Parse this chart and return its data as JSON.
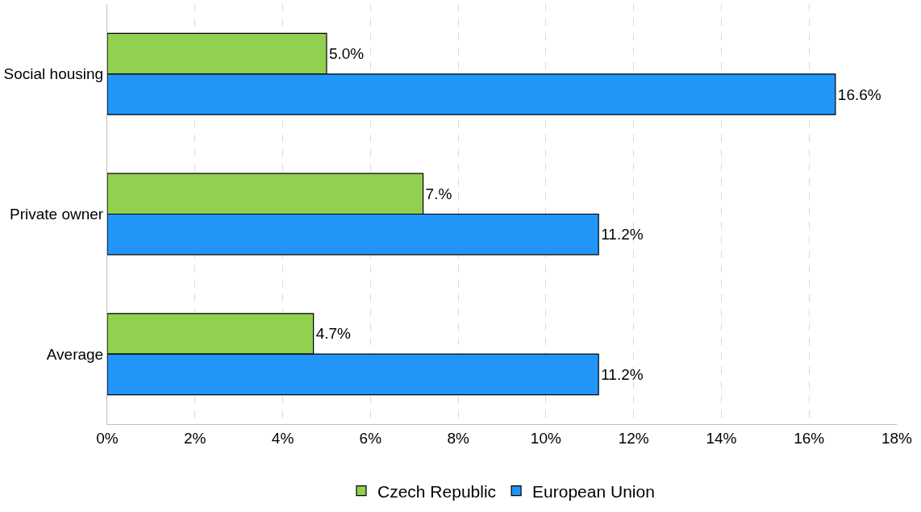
{
  "chart_data": {
    "type": "bar",
    "orientation": "horizontal",
    "categories": [
      "Social housing",
      "Private owner",
      "Average"
    ],
    "series": [
      {
        "name": "Czech Republic",
        "color": "#92d050",
        "values": [
          5.0,
          7.2,
          4.7
        ],
        "value_labels": [
          "5.0%",
          "7.%",
          "4.7%"
        ]
      },
      {
        "name": "European Union",
        "color": "#2196f8",
        "values": [
          16.6,
          11.2,
          11.2
        ],
        "value_labels": [
          "16.6%",
          "11.2%",
          "11.2%"
        ]
      }
    ],
    "xlim": [
      0,
      18
    ],
    "xticks": [
      {
        "value": 0,
        "label": "0%"
      },
      {
        "value": 2,
        "label": "2%"
      },
      {
        "value": 4,
        "label": "4%"
      },
      {
        "value": 6,
        "label": "6%"
      },
      {
        "value": 8,
        "label": "8%"
      },
      {
        "value": 10,
        "label": "10%"
      },
      {
        "value": 12,
        "label": "12%"
      },
      {
        "value": 14,
        "label": "14%"
      },
      {
        "value": 16,
        "label": "16%"
      },
      {
        "value": 18,
        "label": "18%"
      }
    ],
    "grid": "x",
    "legend": "bottom"
  }
}
